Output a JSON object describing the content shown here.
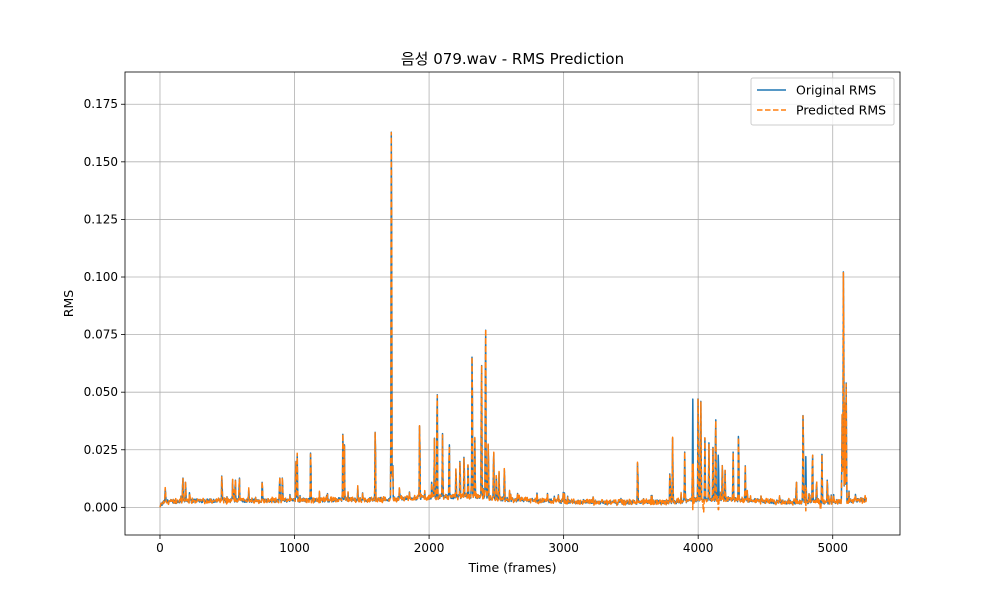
{
  "chart_data": {
    "type": "line",
    "title": "음성 079.wav - RMS Prediction",
    "xlabel": "Time (frames)",
    "ylabel": "RMS",
    "xlim": [
      -260,
      5500
    ],
    "ylim": [
      -0.012,
      0.189
    ],
    "xticks": [
      0,
      1000,
      2000,
      3000,
      4000,
      5000
    ],
    "xtick_labels": [
      "0",
      "1000",
      "2000",
      "3000",
      "4000",
      "5000"
    ],
    "yticks": [
      0.0,
      0.025,
      0.05,
      0.075,
      0.1,
      0.125,
      0.15,
      0.175
    ],
    "ytick_labels": [
      "0.000",
      "0.025",
      "0.050",
      "0.075",
      "0.100",
      "0.125",
      "0.150",
      "0.175"
    ],
    "grid": true,
    "legend_position": "top-right",
    "frames": 5250,
    "baseline": [
      [
        0,
        0.0
      ],
      [
        30,
        0.002
      ],
      [
        200,
        0.0025
      ],
      [
        1000,
        0.0028
      ],
      [
        1600,
        0.003
      ],
      [
        2000,
        0.004
      ],
      [
        2300,
        0.0045
      ],
      [
        2600,
        0.003
      ],
      [
        2900,
        0.0025
      ],
      [
        3100,
        0.002
      ],
      [
        3500,
        0.0018
      ],
      [
        3800,
        0.002
      ],
      [
        4000,
        0.003
      ],
      [
        4300,
        0.003
      ],
      [
        4600,
        0.002
      ],
      [
        5000,
        0.002
      ],
      [
        5250,
        0.003
      ]
    ],
    "peaks": [
      [
        40,
        0.009
      ],
      [
        170,
        0.014
      ],
      [
        190,
        0.012
      ],
      [
        220,
        0.007
      ],
      [
        460,
        0.015
      ],
      [
        540,
        0.012
      ],
      [
        560,
        0.013
      ],
      [
        590,
        0.014
      ],
      [
        660,
        0.008
      ],
      [
        760,
        0.012
      ],
      [
        890,
        0.014
      ],
      [
        910,
        0.014
      ],
      [
        1010,
        0.022
      ],
      [
        1020,
        0.023
      ],
      [
        1120,
        0.026
      ],
      [
        1360,
        0.035
      ],
      [
        1370,
        0.03
      ],
      [
        1470,
        0.009
      ],
      [
        1600,
        0.036
      ],
      [
        1720,
        0.18
      ],
      [
        1730,
        0.02
      ],
      [
        1780,
        0.009
      ],
      [
        1930,
        0.039
      ],
      [
        2020,
        0.012
      ],
      [
        2040,
        0.03
      ],
      [
        2060,
        0.054
      ],
      [
        2100,
        0.032
      ],
      [
        2150,
        0.03
      ],
      [
        2200,
        0.018
      ],
      [
        2230,
        0.022
      ],
      [
        2260,
        0.024
      ],
      [
        2290,
        0.02
      ],
      [
        2320,
        0.072
      ],
      [
        2340,
        0.03
      ],
      [
        2390,
        0.068
      ],
      [
        2420,
        0.085
      ],
      [
        2440,
        0.03
      ],
      [
        2480,
        0.026
      ],
      [
        2500,
        0.015
      ],
      [
        2520,
        0.015
      ],
      [
        2560,
        0.018
      ],
      [
        2880,
        0.006
      ],
      [
        2960,
        0.006
      ],
      [
        3000,
        0.006
      ],
      [
        3220,
        0.005
      ],
      [
        3550,
        0.021
      ],
      [
        3790,
        0.016
      ],
      [
        3810,
        0.03
      ],
      [
        3900,
        0.024
      ],
      [
        3960,
        0.047
      ],
      [
        4000,
        0.052
      ],
      [
        4020,
        0.046
      ],
      [
        4050,
        0.03
      ],
      [
        4080,
        0.028
      ],
      [
        4110,
        0.026
      ],
      [
        4130,
        0.042
      ],
      [
        4150,
        0.025
      ],
      [
        4180,
        0.02
      ],
      [
        4200,
        0.016
      ],
      [
        4260,
        0.024
      ],
      [
        4300,
        0.034
      ],
      [
        4350,
        0.018
      ],
      [
        4730,
        0.012
      ],
      [
        4780,
        0.044
      ],
      [
        4800,
        0.022
      ],
      [
        4850,
        0.025
      ],
      [
        4880,
        0.012
      ],
      [
        4920,
        0.023
      ],
      [
        4960,
        0.013
      ],
      [
        5070,
        0.04
      ],
      [
        5080,
        0.113
      ],
      [
        5090,
        0.05
      ],
      [
        5100,
        0.054
      ],
      [
        5240,
        0.005
      ]
    ],
    "dips": [
      [
        3960,
        -0.001
      ],
      [
        4040,
        -0.002
      ],
      [
        4150,
        -0.001
      ],
      [
        4800,
        -0.0015
      ],
      [
        4910,
        -0.001
      ]
    ],
    "series": [
      {
        "name": "Original RMS",
        "color": "#1f77b4",
        "style": "solid"
      },
      {
        "name": "Predicted RMS",
        "color": "#ff7f0e",
        "style": "dashed"
      }
    ]
  }
}
